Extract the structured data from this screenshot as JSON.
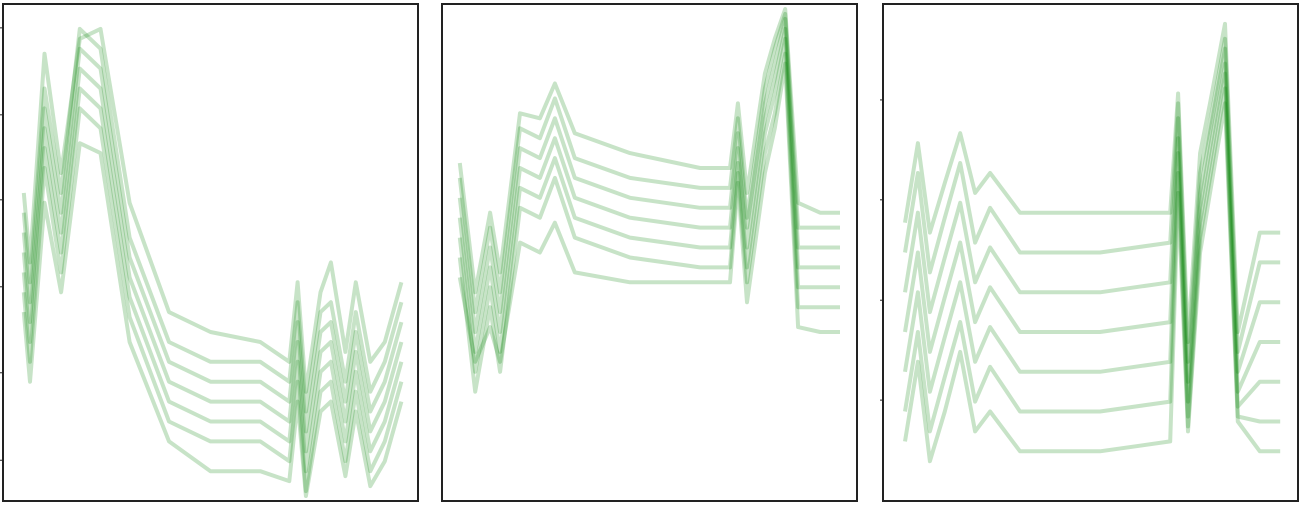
{
  "chart_data": [
    {
      "type": "line",
      "color": "#008000",
      "alpha": 0.22,
      "x": [
        5,
        6.5,
        10,
        14,
        18.5,
        23.5,
        30.5,
        40,
        50,
        62,
        69,
        71,
        73,
        76.5,
        79,
        82.5,
        85,
        88.5,
        92,
        96
      ],
      "xlim": [
        0,
        100
      ],
      "ylim": [
        0,
        100
      ],
      "yticks": [
        95.2,
        77.7,
        60.6,
        43.1,
        25.8,
        8.2
      ],
      "series": [
        {
          "values": [
            58,
            44,
            83,
            62,
            95,
            91,
            53,
            32,
            28,
            28,
            24,
            40,
            18,
            38,
            40,
            24,
            38,
            22,
            28,
            40
          ]
        },
        {
          "values": [
            54,
            40,
            79,
            58,
            91,
            87,
            49,
            28,
            24,
            24,
            20,
            36,
            14,
            34,
            36,
            20,
            34,
            18,
            24,
            36
          ]
        },
        {
          "values": [
            50,
            36,
            75,
            54,
            87,
            83,
            45,
            24,
            20,
            20,
            16,
            32,
            10,
            30,
            32,
            16,
            30,
            14,
            20,
            32
          ]
        },
        {
          "values": [
            46,
            32,
            71,
            50,
            83,
            79,
            41,
            20,
            16,
            16,
            12,
            28,
            6,
            26,
            28,
            12,
            26,
            10,
            16,
            28
          ]
        },
        {
          "values": [
            42,
            28,
            67,
            46,
            79,
            75,
            37,
            16,
            12,
            12,
            8,
            24,
            2,
            22,
            24,
            8,
            22,
            6,
            12,
            24
          ]
        },
        {
          "values": [
            62,
            48,
            90,
            66,
            93,
            95,
            60,
            38,
            34,
            32,
            28,
            44,
            22,
            42,
            48,
            30,
            44,
            28,
            32,
            44
          ]
        },
        {
          "values": [
            38,
            24,
            60,
            42,
            72,
            70,
            32,
            12,
            6,
            6,
            4,
            20,
            1,
            18,
            20,
            5,
            18,
            3,
            8,
            20
          ]
        }
      ]
    },
    {
      "type": "line",
      "color": "#008000",
      "alpha": 0.22,
      "x": [
        4.3,
        8,
        11.6,
        14,
        18.8,
        23.6,
        27.2,
        32,
        45.3,
        62.2,
        69.4,
        71.3,
        73.5,
        77.8,
        80.2,
        82.7,
        85.8,
        91.1,
        95.9
      ],
      "xlim": [
        0,
        100
      ],
      "ylim": [
        0,
        100
      ],
      "series": [
        {
          "values": [
            65,
            38,
            55,
            42,
            75,
            73,
            81,
            69,
            65,
            63,
            63,
            77,
            57,
            83,
            91,
            98,
            55,
            55,
            55
          ]
        },
        {
          "values": [
            61,
            34,
            51,
            38,
            71,
            69,
            77,
            65,
            61,
            59,
            59,
            74,
            55,
            80,
            88,
            97,
            51,
            51,
            51
          ]
        },
        {
          "values": [
            57,
            30,
            47,
            34,
            67,
            65,
            73,
            61,
            57,
            55,
            55,
            71,
            51,
            77,
            85,
            95,
            47,
            47,
            47
          ]
        },
        {
          "values": [
            53,
            26,
            43,
            30,
            63,
            61,
            69,
            57,
            53,
            51,
            51,
            68,
            47,
            74,
            82,
            93,
            43,
            43,
            43
          ]
        },
        {
          "values": [
            49,
            22,
            39,
            26,
            59,
            57,
            65,
            53,
            49,
            47,
            47,
            66,
            44,
            70,
            78,
            90,
            39,
            39,
            39
          ]
        },
        {
          "values": [
            68,
            42,
            58,
            46,
            78,
            77,
            84,
            74,
            70,
            67,
            67,
            80,
            62,
            86,
            93,
            99,
            60,
            58,
            58
          ]
        },
        {
          "values": [
            45,
            28,
            35,
            28,
            52,
            50,
            56,
            46,
            44,
            44,
            44,
            64,
            40,
            66,
            75,
            88,
            35,
            34,
            34
          ]
        }
      ]
    },
    {
      "type": "line",
      "color": "#008000",
      "alpha": 0.22,
      "x": [
        5.3,
        8.4,
        11.3,
        14.9,
        18.6,
        22.2,
        25.8,
        33,
        52.3,
        69.2,
        71.1,
        73.5,
        76.4,
        78.8,
        82.4,
        85.5,
        90.8,
        95.7
      ],
      "xlim": [
        0,
        100
      ],
      "ylim": [
        0,
        100
      ],
      "yticks": [
        80.7,
        60.6,
        40.4,
        20.3
      ],
      "series": [
        {
          "values": [
            50,
            66,
            46,
            57,
            68,
            52,
            59,
            50,
            50,
            52,
            80,
            28,
            66,
            76,
            93,
            30,
            48,
            48
          ]
        },
        {
          "values": [
            42,
            58,
            38,
            49,
            60,
            44,
            51,
            42,
            42,
            44,
            77,
            24,
            62,
            74,
            91,
            26,
            40,
            40
          ]
        },
        {
          "values": [
            34,
            50,
            30,
            41,
            52,
            36,
            43,
            34,
            34,
            36,
            73,
            20,
            59,
            71,
            88,
            22,
            32,
            32
          ]
        },
        {
          "values": [
            26,
            42,
            22,
            33,
            44,
            28,
            35,
            26,
            26,
            28,
            70,
            17,
            56,
            68,
            86,
            19,
            24,
            24
          ]
        },
        {
          "values": [
            18,
            34,
            14,
            25,
            36,
            20,
            27,
            18,
            18,
            20,
            66,
            15,
            53,
            65,
            83,
            17,
            16,
            16
          ]
        },
        {
          "values": [
            56,
            72,
            54,
            64,
            74,
            62,
            66,
            58,
            58,
            58,
            82,
            32,
            70,
            80,
            96,
            34,
            54,
            54
          ]
        },
        {
          "values": [
            12,
            28,
            8,
            18,
            30,
            14,
            18,
            10,
            10,
            12,
            62,
            14,
            50,
            62,
            80,
            16,
            10,
            10
          ]
        }
      ]
    }
  ]
}
